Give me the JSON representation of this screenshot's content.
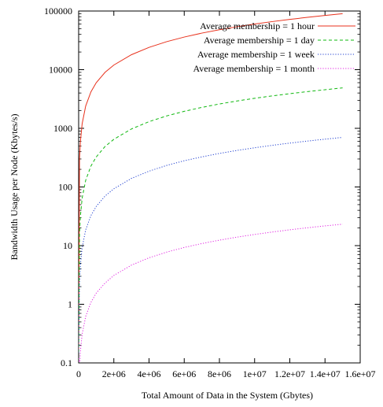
{
  "chart_data": {
    "type": "line",
    "title": "",
    "xlabel": "Total Amount of Data in the System  (Gbytes)",
    "ylabel": "Bandwidth Usage per Node (Kbytes/s)",
    "xlim": [
      0,
      16000000
    ],
    "ylim": [
      0.1,
      100000
    ],
    "yscale": "log",
    "grid": false,
    "legend_position": "top-right",
    "x_ticks": [
      0,
      2000000,
      4000000,
      6000000,
      8000000,
      10000000,
      12000000,
      14000000,
      16000000
    ],
    "x_tick_labels": [
      "0",
      "2e+06",
      "4e+06",
      "6e+06",
      "8e+06",
      "1e+07",
      "1.2e+07",
      "1.4e+07",
      "1.6e+07"
    ],
    "y_ticks": [
      0.1,
      1,
      10,
      100,
      1000,
      10000,
      100000
    ],
    "y_tick_labels": [
      "0.1",
      "1",
      "10",
      "100",
      "1000",
      "10000",
      "100000"
    ],
    "series": [
      {
        "name": "Average membership = 1 hour",
        "color": "#e8311c",
        "dash": "solid",
        "x": [
          0,
          50000,
          100000,
          200000,
          400000,
          700000,
          1000000,
          1500000,
          2000000,
          3000000,
          4000000,
          5000000,
          6000000,
          7000000,
          8000000,
          9000000,
          10000000,
          11000000,
          12000000,
          13000000,
          14000000,
          15000000
        ],
        "values": [
          0.15,
          300,
          600,
          1200,
          2400,
          4200,
          6000,
          9000,
          12000,
          18000,
          24000,
          30000,
          36000,
          42000,
          48000,
          54000,
          60000,
          66000,
          72000,
          78000,
          84000,
          90000
        ]
      },
      {
        "name": "Average membership = 1 day",
        "color": "#10b810",
        "dash": "dashed",
        "x": [
          0,
          50000,
          100000,
          200000,
          400000,
          700000,
          1000000,
          1500000,
          2000000,
          3000000,
          4000000,
          5000000,
          6000000,
          7000000,
          8000000,
          9000000,
          10000000,
          11000000,
          12000000,
          13000000,
          14000000,
          15000000
        ],
        "values": [
          0.15,
          16,
          32,
          65,
          130,
          228,
          325,
          490,
          650,
          975,
          1300,
          1625,
          1950,
          2275,
          2600,
          2925,
          3250,
          3575,
          3900,
          4225,
          4550,
          4900
        ]
      },
      {
        "name": "Average membership = 1 week",
        "color": "#1f3fd0",
        "dash": "dotted",
        "x": [
          0,
          50000,
          100000,
          200000,
          400000,
          700000,
          1000000,
          1500000,
          2000000,
          3000000,
          4000000,
          5000000,
          6000000,
          7000000,
          8000000,
          9000000,
          10000000,
          11000000,
          12000000,
          13000000,
          14000000,
          15000000
        ],
        "values": [
          0.15,
          2.3,
          4.7,
          9.3,
          18.6,
          32.6,
          46.6,
          70,
          93,
          140,
          186,
          233,
          280,
          326,
          373,
          420,
          466,
          513,
          560,
          606,
          653,
          700
        ]
      },
      {
        "name": "Average membership = 1 month",
        "color": "#e022e0",
        "dash": "dotted",
        "x": [
          0,
          50000,
          100000,
          200000,
          400000,
          700000,
          1000000,
          1500000,
          2000000,
          3000000,
          4000000,
          5000000,
          6000000,
          7000000,
          8000000,
          9000000,
          10000000,
          11000000,
          12000000,
          13000000,
          14000000,
          15000000
        ],
        "values": [
          0.12,
          0.08,
          0.16,
          0.31,
          0.62,
          1.08,
          1.55,
          2.3,
          3.1,
          4.65,
          6.2,
          7.75,
          9.3,
          10.85,
          12.4,
          13.95,
          15.5,
          17.05,
          18.6,
          20.15,
          21.7,
          23.2
        ]
      }
    ]
  }
}
